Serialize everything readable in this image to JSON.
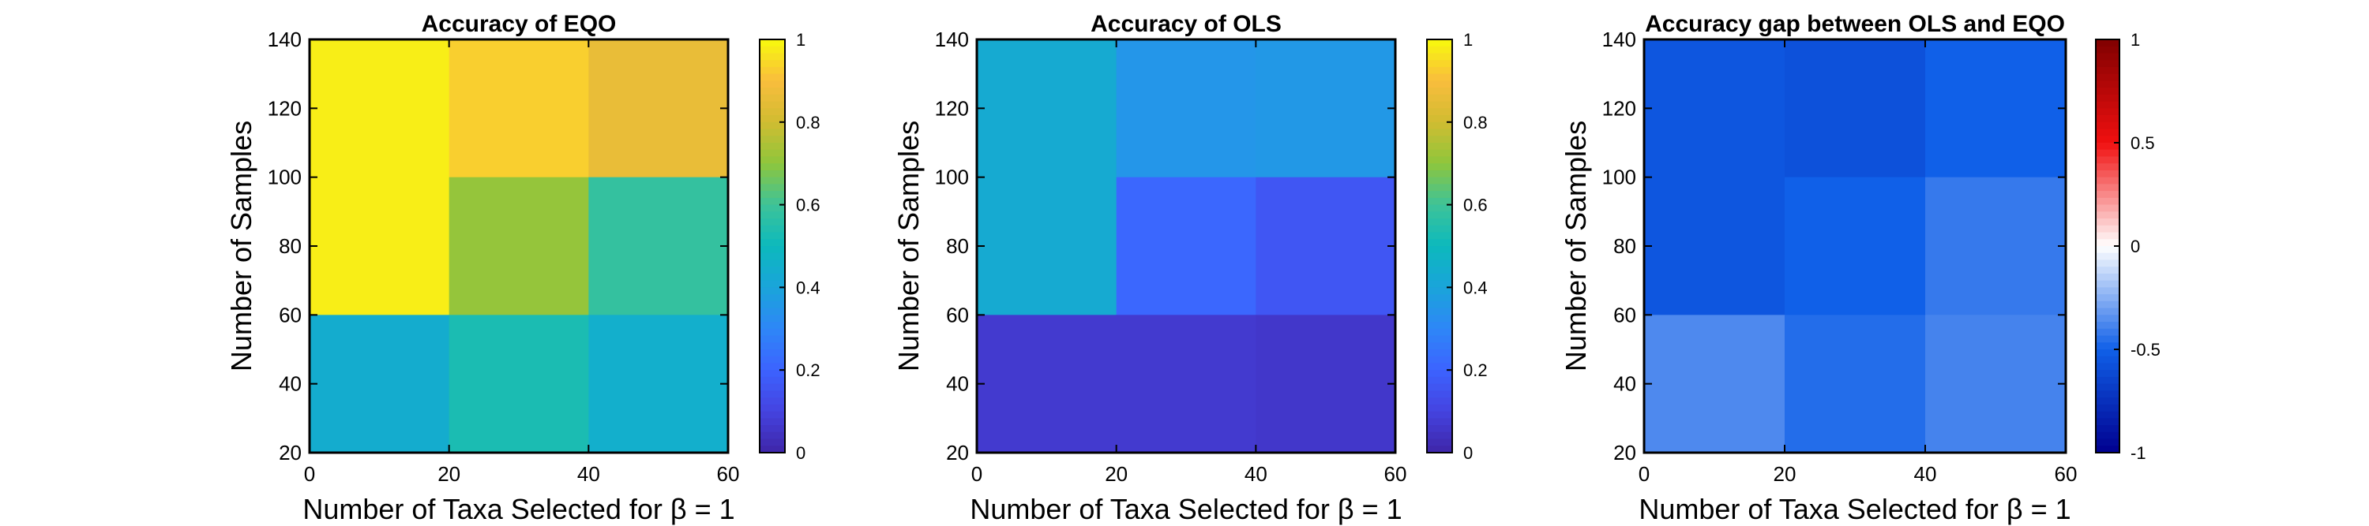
{
  "chart_data": [
    {
      "type": "heatmap",
      "title": "Accuracy of EQO",
      "xlabel": "Number of Taxa Selected for β = 1",
      "ylabel": "Number of Samples",
      "x_edges": [
        0,
        20,
        40,
        60
      ],
      "y_edges": [
        20,
        60,
        100,
        140
      ],
      "xticks": [
        0,
        20,
        40,
        60
      ],
      "yticks": [
        20,
        40,
        60,
        80,
        100,
        120,
        140
      ],
      "xlim": [
        0,
        60
      ],
      "ylim": [
        20,
        140
      ],
      "colormap": "parula",
      "clim": [
        0,
        1
      ],
      "colorbar_ticks": [
        0,
        0.2,
        0.4,
        0.6,
        0.8,
        1
      ],
      "colorbar_labels": [
        "0",
        "0.2",
        "0.4",
        "0.6",
        "0.8",
        "1"
      ],
      "rows": [
        {
          "y_range": [
            100,
            140
          ],
          "values": [
            0.98,
            0.93,
            0.86
          ]
        },
        {
          "y_range": [
            60,
            100
          ],
          "values": [
            0.98,
            0.71,
            0.58
          ]
        },
        {
          "y_range": [
            20,
            60
          ],
          "values": [
            0.44,
            0.53,
            0.45
          ]
        }
      ]
    },
    {
      "type": "heatmap",
      "title": "Accuracy of OLS",
      "xlabel": "Number of Taxa Selected for β = 1",
      "ylabel": "Number of Samples",
      "x_edges": [
        0,
        20,
        40,
        60
      ],
      "y_edges": [
        20,
        60,
        100,
        140
      ],
      "xticks": [
        0,
        20,
        40,
        60
      ],
      "yticks": [
        20,
        40,
        60,
        80,
        100,
        120,
        140
      ],
      "xlim": [
        0,
        60
      ],
      "ylim": [
        20,
        140
      ],
      "colormap": "parula",
      "clim": [
        0,
        1
      ],
      "colorbar_ticks": [
        0,
        0.2,
        0.4,
        0.6,
        0.8,
        1
      ],
      "colorbar_labels": [
        "0",
        "0.2",
        "0.4",
        "0.6",
        "0.8",
        "1"
      ],
      "rows": [
        {
          "y_range": [
            100,
            140
          ],
          "values": [
            0.43,
            0.35,
            0.36
          ]
        },
        {
          "y_range": [
            60,
            100
          ],
          "values": [
            0.43,
            0.21,
            0.16
          ]
        },
        {
          "y_range": [
            20,
            60
          ],
          "values": [
            0.07,
            0.07,
            0.06
          ]
        }
      ]
    },
    {
      "type": "heatmap",
      "title": "Accuracy gap between OLS and EQO",
      "xlabel": "Number of Taxa Selected for β = 1",
      "ylabel": "Number of Samples",
      "x_edges": [
        0,
        20,
        40,
        60
      ],
      "y_edges": [
        20,
        60,
        100,
        140
      ],
      "xticks": [
        0,
        20,
        40,
        60
      ],
      "yticks": [
        20,
        40,
        60,
        80,
        100,
        120,
        140
      ],
      "xlim": [
        0,
        60
      ],
      "ylim": [
        20,
        140
      ],
      "colormap": "blue-white-red",
      "clim": [
        -1,
        1
      ],
      "colorbar_ticks": [
        -1,
        -0.5,
        0,
        0.5,
        1
      ],
      "colorbar_labels": [
        "-1",
        "-0.5",
        "0",
        "0.5",
        "1"
      ],
      "rows": [
        {
          "y_range": [
            100,
            140
          ],
          "values": [
            -0.55,
            -0.58,
            -0.5
          ]
        },
        {
          "y_range": [
            60,
            100
          ],
          "values": [
            -0.55,
            -0.5,
            -0.42
          ]
        },
        {
          "y_range": [
            20,
            60
          ],
          "values": [
            -0.37,
            -0.46,
            -0.39
          ]
        }
      ]
    }
  ]
}
